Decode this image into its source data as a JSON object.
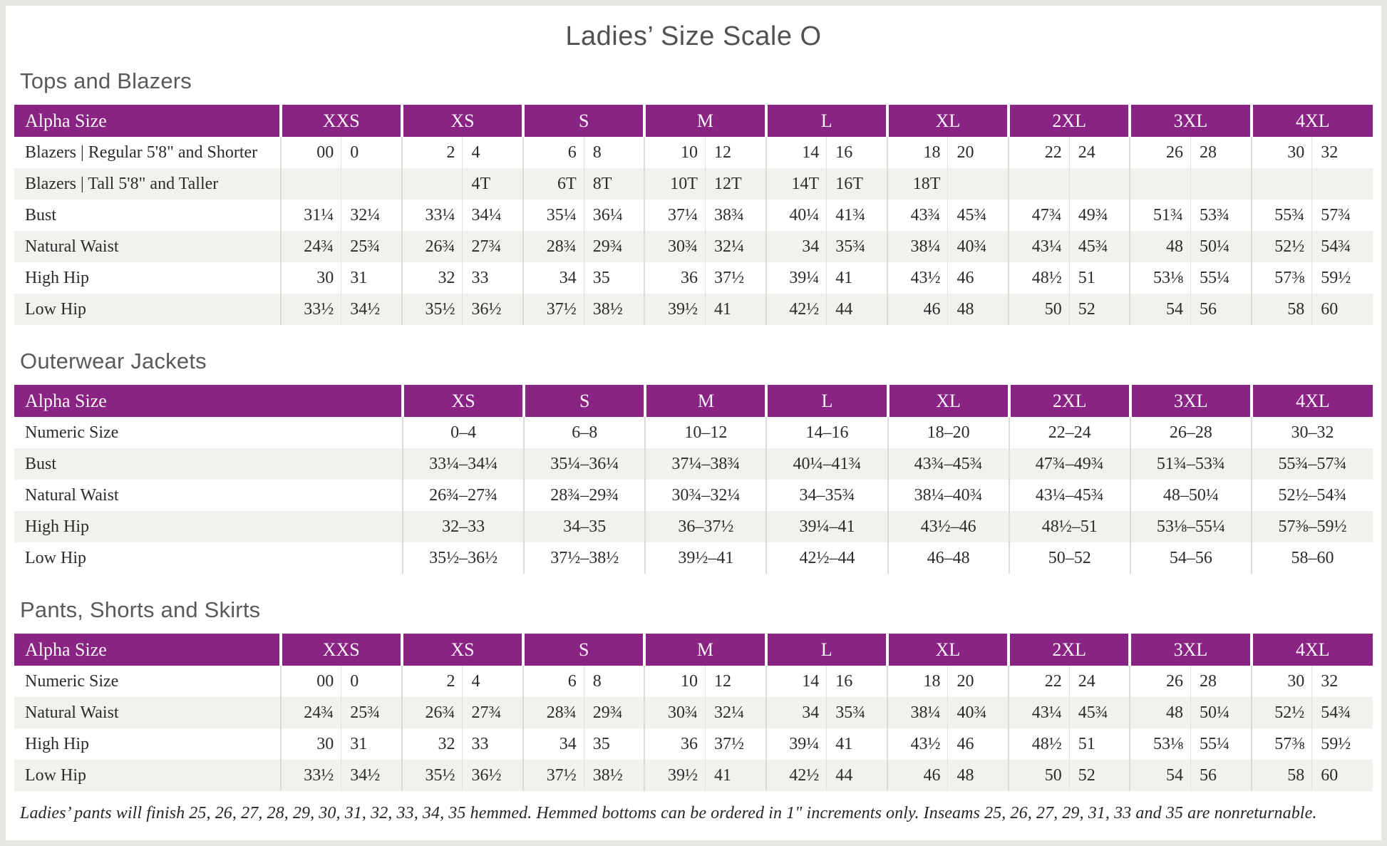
{
  "page": {
    "title": "Ladies’ Size Scale O"
  },
  "colors": {
    "header_purple": "#892384",
    "row_stripe": "#F2F1EE",
    "heading_gray": "#595A5C"
  },
  "footnote": "Ladies’ pants will finish 25, 26, 27, 28, 29, 30, 31, 32, 33, 34, 35 hemmed. Hemmed bottoms can be ordered in 1\" increments only. Inseams 25, 26, 27, 29, 31, 33 and 35 are nonreturnable.",
  "sections": [
    {
      "heading": "Tops and Blazers",
      "table": {
        "corner_label": "Alpha Size",
        "columns_per_group": 2,
        "groups": [
          "XXS",
          "XS",
          "S",
          "M",
          "L",
          "XL",
          "2XL",
          "3XL",
          "4XL"
        ],
        "rows": [
          {
            "label": "Blazers | Regular 5'8\" and Shorter",
            "values": [
              "00",
              "0",
              "2",
              "4",
              "6",
              "8",
              "10",
              "12",
              "14",
              "16",
              "18",
              "20",
              "22",
              "24",
              "26",
              "28",
              "30",
              "32"
            ]
          },
          {
            "label": "Blazers | Tall 5'8\" and Taller",
            "values": [
              "",
              "",
              "",
              "4T",
              "6T",
              "8T",
              "10T",
              "12T",
              "14T",
              "16T",
              "18T",
              "",
              "",
              "",
              "",
              "",
              "",
              ""
            ]
          },
          {
            "label": "Bust",
            "values": [
              "31¼",
              "32¼",
              "33¼",
              "34¼",
              "35¼",
              "36¼",
              "37¼",
              "38¾",
              "40¼",
              "41¾",
              "43¾",
              "45¾",
              "47¾",
              "49¾",
              "51¾",
              "53¾",
              "55¾",
              "57¾"
            ]
          },
          {
            "label": "Natural Waist",
            "values": [
              "24¾",
              "25¾",
              "26¾",
              "27¾",
              "28¾",
              "29¾",
              "30¾",
              "32¼",
              "34",
              "35¾",
              "38¼",
              "40¾",
              "43¼",
              "45¾",
              "48",
              "50¼",
              "52½",
              "54¾"
            ]
          },
          {
            "label": "High Hip",
            "values": [
              "30",
              "31",
              "32",
              "33",
              "34",
              "35",
              "36",
              "37½",
              "39¼",
              "41",
              "43½",
              "46",
              "48½",
              "51",
              "53⅛",
              "55¼",
              "57⅜",
              "59½"
            ]
          },
          {
            "label": "Low Hip",
            "values": [
              "33½",
              "34½",
              "35½",
              "36½",
              "37½",
              "38½",
              "39½",
              "41",
              "42½",
              "44",
              "46",
              "48",
              "50",
              "52",
              "54",
              "56",
              "58",
              "60"
            ]
          }
        ]
      }
    },
    {
      "heading": "Outerwear Jackets",
      "table": {
        "corner_label": "Alpha Size",
        "columns_per_group": 1,
        "groups": [
          "XS",
          "S",
          "M",
          "L",
          "XL",
          "2XL",
          "3XL",
          "4XL"
        ],
        "rows": [
          {
            "label": "Numeric Size",
            "values": [
              "0–4",
              "6–8",
              "10–12",
              "14–16",
              "18–20",
              "22–24",
              "26–28",
              "30–32"
            ]
          },
          {
            "label": "Bust",
            "values": [
              "33¼–34¼",
              "35¼–36¼",
              "37¼–38¾",
              "40¼–41¾",
              "43¾–45¾",
              "47¾–49¾",
              "51¾–53¾",
              "55¾–57¾"
            ]
          },
          {
            "label": "Natural Waist",
            "values": [
              "26¾–27¾",
              "28¾–29¾",
              "30¾–32¼",
              "34–35¾",
              "38¼–40¾",
              "43¼–45¾",
              "48–50¼",
              "52½–54¾"
            ]
          },
          {
            "label": "High Hip",
            "values": [
              "32–33",
              "34–35",
              "36–37½",
              "39¼–41",
              "43½–46",
              "48½–51",
              "53⅛–55¼",
              "57⅜–59½"
            ]
          },
          {
            "label": "Low Hip",
            "values": [
              "35½–36½",
              "37½–38½",
              "39½–41",
              "42½–44",
              "46–48",
              "50–52",
              "54–56",
              "58–60"
            ]
          }
        ]
      }
    },
    {
      "heading": "Pants, Shorts and Skirts",
      "table": {
        "corner_label": "Alpha Size",
        "columns_per_group": 2,
        "groups": [
          "XXS",
          "XS",
          "S",
          "M",
          "L",
          "XL",
          "2XL",
          "3XL",
          "4XL"
        ],
        "rows": [
          {
            "label": "Numeric Size",
            "values": [
              "00",
              "0",
              "2",
              "4",
              "6",
              "8",
              "10",
              "12",
              "14",
              "16",
              "18",
              "20",
              "22",
              "24",
              "26",
              "28",
              "30",
              "32"
            ]
          },
          {
            "label": "Natural Waist",
            "values": [
              "24¾",
              "25¾",
              "26¾",
              "27¾",
              "28¾",
              "29¾",
              "30¾",
              "32¼",
              "34",
              "35¾",
              "38¼",
              "40¾",
              "43¼",
              "45¾",
              "48",
              "50¼",
              "52½",
              "54¾"
            ]
          },
          {
            "label": "High Hip",
            "values": [
              "30",
              "31",
              "32",
              "33",
              "34",
              "35",
              "36",
              "37½",
              "39¼",
              "41",
              "43½",
              "46",
              "48½",
              "51",
              "53⅛",
              "55¼",
              "57⅜",
              "59½"
            ]
          },
          {
            "label": "Low Hip",
            "values": [
              "33½",
              "34½",
              "35½",
              "36½",
              "37½",
              "38½",
              "39½",
              "41",
              "42½",
              "44",
              "46",
              "48",
              "50",
              "52",
              "54",
              "56",
              "58",
              "60"
            ]
          }
        ]
      }
    }
  ]
}
